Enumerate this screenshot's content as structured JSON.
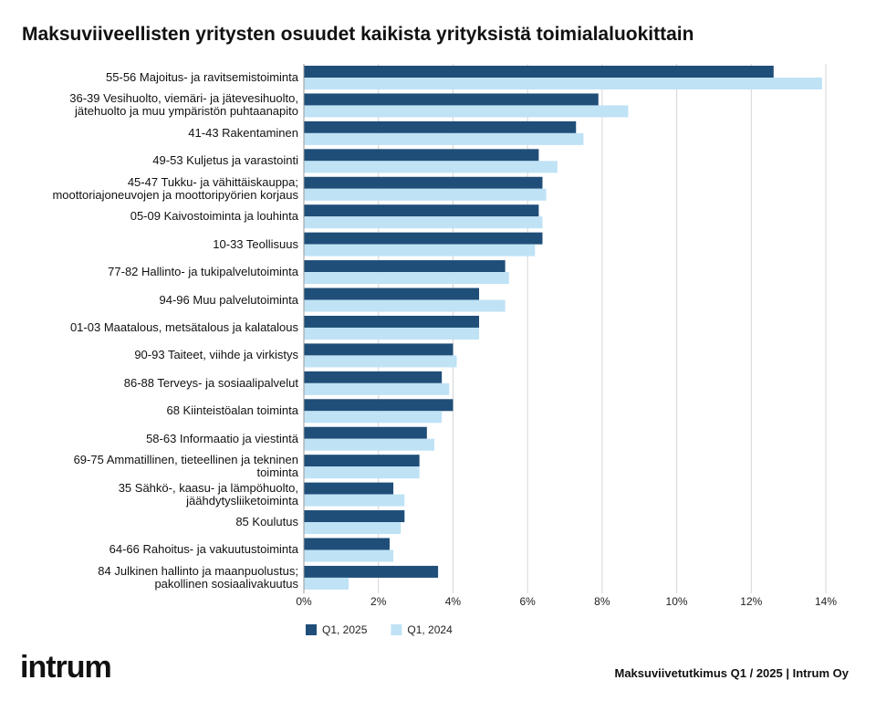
{
  "chart_data": {
    "type": "hbar",
    "title": "Maksuviiveellisten yritysten osuudet kaikista yrityksistä toimialaluokittain",
    "categories": [
      "55-56 Majoitus- ja ravitsemistoiminta",
      "36-39 Vesihuolto, viemäri- ja jätevesihuolto,\njätehuolto ja muu ympäristön puhtaanapito",
      "41-43 Rakentaminen",
      "49-53 Kuljetus ja varastointi",
      "45-47 Tukku- ja vähittäiskauppa;\nmoottoriajoneuvojen ja moottoripyörien korjaus",
      "05-09 Kaivostoiminta ja louhinta",
      "10-33 Teollisuus",
      "77-82 Hallinto- ja tukipalvelutoiminta",
      "94-96 Muu palvelutoiminta",
      "01-03 Maatalous, metsätalous ja kalatalous",
      "90-93 Taiteet, viihde ja virkistys",
      "86-88 Terveys- ja sosiaalipalvelut",
      "68 Kiinteistöalan toiminta",
      "58-63 Informaatio ja viestintä",
      "69-75 Ammatillinen, tieteellinen ja tekninen\ntoiminta",
      "35 Sähkö-, kaasu- ja lämpöhuolto,\njäähdytysliiketoiminta",
      "85 Koulutus",
      "64-66 Rahoitus- ja vakuutustoiminta",
      "84 Julkinen hallinto ja maanpuolustus;\npakollinen sosiaalivakuutus"
    ],
    "series": [
      {
        "name": "Q1, 2025",
        "color": "#1f4e79",
        "values": [
          12.6,
          7.9,
          7.3,
          6.3,
          6.4,
          6.3,
          6.4,
          5.4,
          4.7,
          4.7,
          4.0,
          3.7,
          4.0,
          3.3,
          3.1,
          2.4,
          2.7,
          2.3,
          3.6
        ]
      },
      {
        "name": "Q1, 2024",
        "color": "#bfe2f5",
        "values": [
          13.9,
          8.7,
          7.5,
          6.8,
          6.5,
          6.4,
          6.2,
          5.5,
          5.4,
          4.7,
          4.1,
          3.9,
          3.7,
          3.5,
          3.1,
          2.7,
          2.6,
          2.4,
          1.2
        ]
      }
    ],
    "xlim": [
      0,
      14
    ],
    "xticks": [
      {
        "value": 0,
        "label": "0%"
      },
      {
        "value": 2,
        "label": "2%"
      },
      {
        "value": 4,
        "label": "4%"
      },
      {
        "value": 6,
        "label": "6%"
      },
      {
        "value": 8,
        "label": "8%"
      },
      {
        "value": 10,
        "label": "10%"
      },
      {
        "value": 12,
        "label": "12%"
      },
      {
        "value": 14,
        "label": "14%"
      }
    ],
    "grid": true,
    "legend": "bottom",
    "logo": "intrum",
    "source": "Maksuviivetutkimus Q1 / 2025 | Intrum Oy"
  }
}
